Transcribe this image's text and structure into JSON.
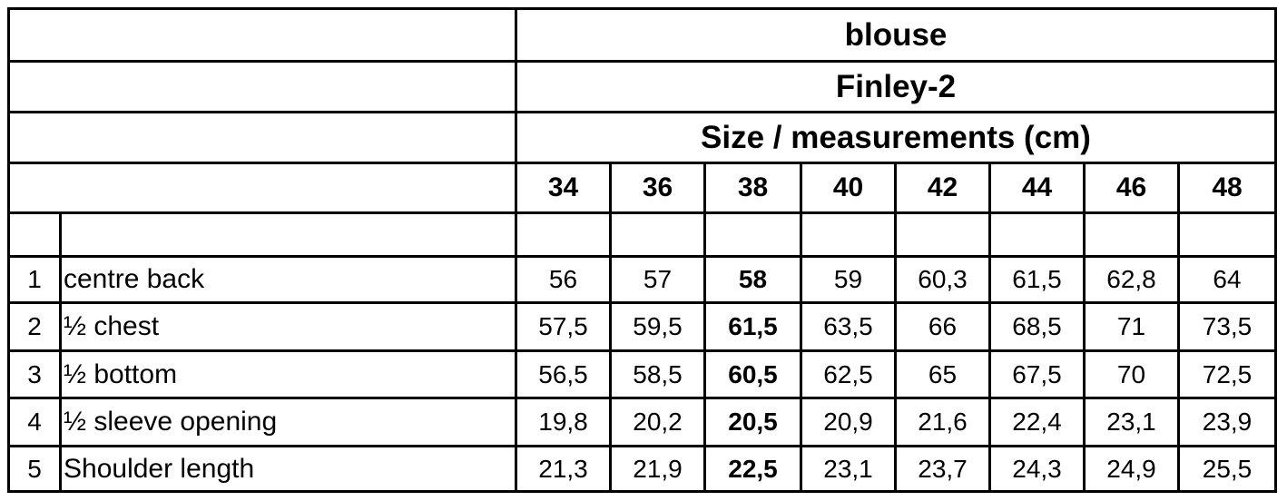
{
  "header": {
    "garment": "blouse",
    "model": "Finley-2",
    "subtitle": "Size / measurements (cm)"
  },
  "sizes": [
    "34",
    "36",
    "38",
    "40",
    "42",
    "44",
    "46",
    "48"
  ],
  "highlighted_size": "38",
  "rows": [
    {
      "num": "1",
      "label": "centre back",
      "values": [
        "56",
        "57",
        "58",
        "59",
        "60,3",
        "61,5",
        "62,8",
        "64"
      ]
    },
    {
      "num": "2",
      "label": "½ chest",
      "values": [
        "57,5",
        "59,5",
        "61,5",
        "63,5",
        "66",
        "68,5",
        "71",
        "73,5"
      ]
    },
    {
      "num": "3",
      "label": "½ bottom",
      "values": [
        "56,5",
        "58,5",
        "60,5",
        "62,5",
        "65",
        "67,5",
        "70",
        "72,5"
      ]
    },
    {
      "num": "4",
      "label": "½ sleeve opening",
      "values": [
        "19,8",
        "20,2",
        "20,5",
        "20,9",
        "21,6",
        "22,4",
        "23,1",
        "23,9"
      ]
    },
    {
      "num": "5",
      "label": "Shoulder length",
      "values": [
        "21,3",
        "21,9",
        "22,5",
        "23,1",
        "23,7",
        "24,3",
        "24,9",
        "25,5"
      ]
    }
  ]
}
